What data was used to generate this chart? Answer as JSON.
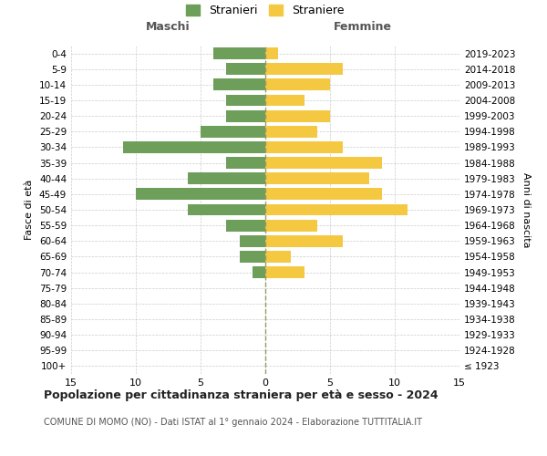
{
  "age_groups": [
    "100+",
    "95-99",
    "90-94",
    "85-89",
    "80-84",
    "75-79",
    "70-74",
    "65-69",
    "60-64",
    "55-59",
    "50-54",
    "45-49",
    "40-44",
    "35-39",
    "30-34",
    "25-29",
    "20-24",
    "15-19",
    "10-14",
    "5-9",
    "0-4"
  ],
  "birth_years": [
    "≤ 1923",
    "1924-1928",
    "1929-1933",
    "1934-1938",
    "1939-1943",
    "1944-1948",
    "1949-1953",
    "1954-1958",
    "1959-1963",
    "1964-1968",
    "1969-1973",
    "1974-1978",
    "1979-1983",
    "1984-1988",
    "1989-1993",
    "1994-1998",
    "1999-2003",
    "2004-2008",
    "2009-2013",
    "2014-2018",
    "2019-2023"
  ],
  "males": [
    0,
    0,
    0,
    0,
    0,
    0,
    1,
    2,
    2,
    3,
    6,
    10,
    6,
    3,
    11,
    5,
    3,
    3,
    4,
    3,
    4
  ],
  "females": [
    0,
    0,
    0,
    0,
    0,
    0,
    3,
    2,
    6,
    4,
    11,
    9,
    8,
    9,
    6,
    4,
    5,
    3,
    5,
    6,
    1
  ],
  "male_color": "#6d9e5a",
  "female_color": "#f5c842",
  "background_color": "#ffffff",
  "grid_color": "#cccccc",
  "center_line_color": "#999966",
  "title": "Popolazione per cittadinanza straniera per età e sesso - 2024",
  "subtitle": "COMUNE DI MOMO (NO) - Dati ISTAT al 1° gennaio 2024 - Elaborazione TUTTITALIA.IT",
  "xlabel_left": "Maschi",
  "xlabel_right": "Femmine",
  "ylabel_left": "Fasce di età",
  "ylabel_right": "Anni di nascita",
  "legend_males": "Stranieri",
  "legend_females": "Straniere",
  "xlim": 15,
  "figsize": [
    6.0,
    5.0
  ],
  "dpi": 100
}
